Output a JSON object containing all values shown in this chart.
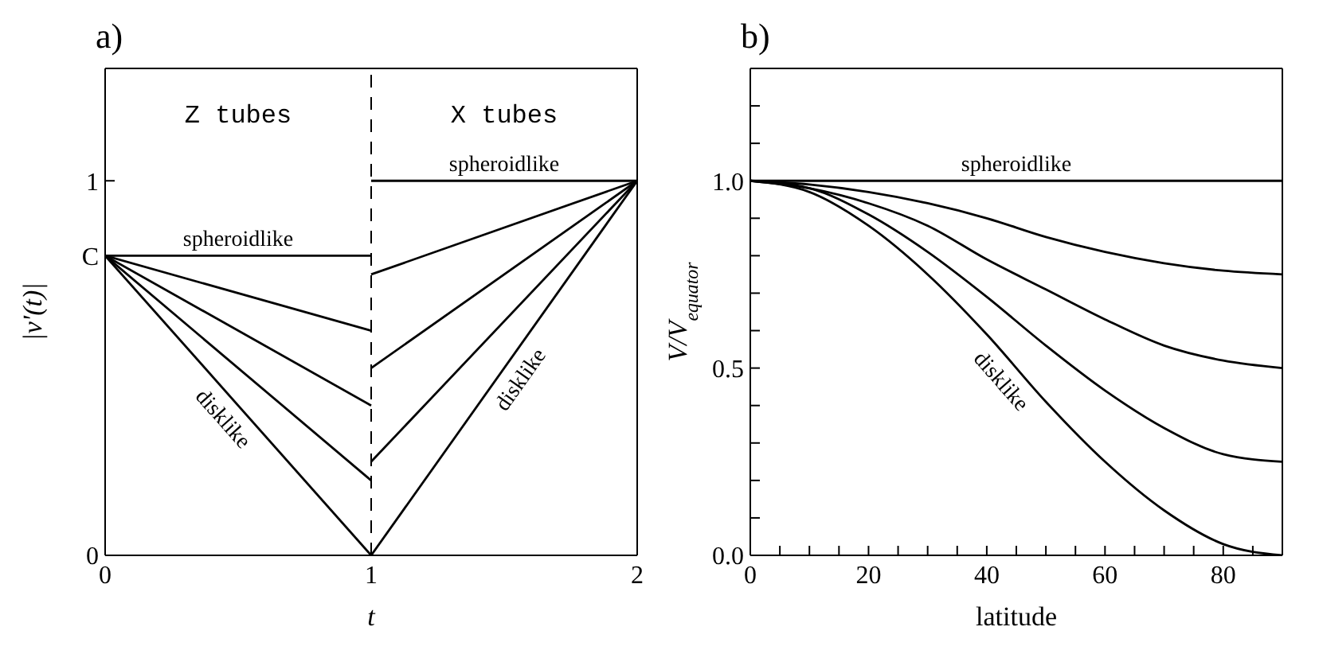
{
  "chart_data": [
    {
      "type": "line",
      "title": "a)",
      "xlabel": "t",
      "ylabel": "|v'(t)|",
      "xlim": [
        0,
        2
      ],
      "ylim": [
        0,
        1.3
      ],
      "xticks": [
        0,
        1,
        2
      ],
      "yticks": [
        0,
        {
          "value": 0.8,
          "label": "C"
        },
        1
      ],
      "grid": false,
      "ref_lines": [
        {
          "axis": "x",
          "value": 1,
          "line_style": "dashed",
          "color": "#000000"
        }
      ],
      "series": [
        {
          "name": "spheroidlike",
          "color": "#000000",
          "x": [
            0,
            1
          ],
          "values": [
            0.8,
            0.8
          ]
        },
        {
          "color": "#000000",
          "x": [
            0,
            1
          ],
          "values": [
            0.8,
            0.6
          ]
        },
        {
          "color": "#000000",
          "x": [
            0,
            1
          ],
          "values": [
            0.8,
            0.4
          ]
        },
        {
          "color": "#000000",
          "x": [
            0,
            1
          ],
          "values": [
            0.8,
            0.2
          ]
        },
        {
          "name": "disklike",
          "color": "#000000",
          "x": [
            0,
            1
          ],
          "values": [
            0.8,
            0
          ]
        },
        {
          "name": "spheroidlike",
          "color": "#000000",
          "x": [
            1,
            2
          ],
          "values": [
            1,
            1
          ]
        },
        {
          "color": "#000000",
          "x": [
            1,
            2
          ],
          "values": [
            0.75,
            1
          ]
        },
        {
          "color": "#000000",
          "x": [
            1,
            2
          ],
          "values": [
            0.5,
            1
          ]
        },
        {
          "color": "#000000",
          "x": [
            1,
            2
          ],
          "values": [
            0.25,
            1
          ]
        },
        {
          "name": "disklike",
          "color": "#000000",
          "x": [
            1,
            2
          ],
          "values": [
            0,
            1
          ]
        }
      ],
      "annotations": [
        "Z tubes",
        "X tubes"
      ]
    },
    {
      "type": "line",
      "title": "b)",
      "xlabel": "latitude",
      "ylabel": "V/V$_{equator}$",
      "xlim": [
        0,
        90
      ],
      "ylim": [
        0,
        1.3
      ],
      "xticks": [
        0,
        {
          "value": 5,
          "label": null
        },
        {
          "value": 10,
          "label": null
        },
        {
          "value": 15,
          "label": null
        },
        20,
        {
          "value": 25,
          "label": null
        },
        {
          "value": 30,
          "label": null
        },
        {
          "value": 35,
          "label": null
        },
        40,
        {
          "value": 45,
          "label": null
        },
        {
          "value": 50,
          "label": null
        },
        {
          "value": 55,
          "label": null
        },
        60,
        {
          "value": 65,
          "label": null
        },
        {
          "value": 70,
          "label": null
        },
        {
          "value": 75,
          "label": null
        },
        80,
        {
          "value": 85,
          "label": null
        }
      ],
      "yticks": [
        {
          "value": 0,
          "label": "0.0"
        },
        {
          "value": 0.1,
          "label": null
        },
        {
          "value": 0.2,
          "label": null
        },
        {
          "value": 0.3,
          "label": null
        },
        {
          "value": 0.4,
          "label": null
        },
        {
          "value": 0.5,
          "label": "0.5"
        },
        {
          "value": 0.6,
          "label": null
        },
        {
          "value": 0.7,
          "label": null
        },
        {
          "value": 0.8,
          "label": null
        },
        {
          "value": 0.9,
          "label": null
        },
        {
          "value": 1,
          "label": "1.0"
        },
        {
          "value": 1.1,
          "label": null
        },
        {
          "value": 1.2,
          "label": null
        }
      ],
      "grid": false,
      "x": [
        0,
        10,
        20,
        30,
        40,
        50,
        60,
        70,
        80,
        90
      ],
      "series": [
        {
          "name": "spheroidlike",
          "color": "#000000",
          "values": [
            1,
            1,
            1,
            1,
            1,
            1,
            1,
            1,
            1,
            1
          ]
        },
        {
          "color": "#000000",
          "values": [
            1,
            0.99,
            0.97,
            0.94,
            0.9,
            0.85,
            0.81,
            0.78,
            0.76,
            0.75
          ]
        },
        {
          "color": "#000000",
          "values": [
            1,
            0.98,
            0.94,
            0.88,
            0.79,
            0.71,
            0.63,
            0.56,
            0.52,
            0.5
          ]
        },
        {
          "color": "#000000",
          "values": [
            1,
            0.98,
            0.91,
            0.81,
            0.69,
            0.56,
            0.44,
            0.34,
            0.27,
            0.25
          ]
        },
        {
          "name": "disklike",
          "color": "#000000",
          "values": [
            1,
            0.97,
            0.88,
            0.75,
            0.59,
            0.41,
            0.25,
            0.12,
            0.03,
            0
          ]
        }
      ]
    }
  ]
}
